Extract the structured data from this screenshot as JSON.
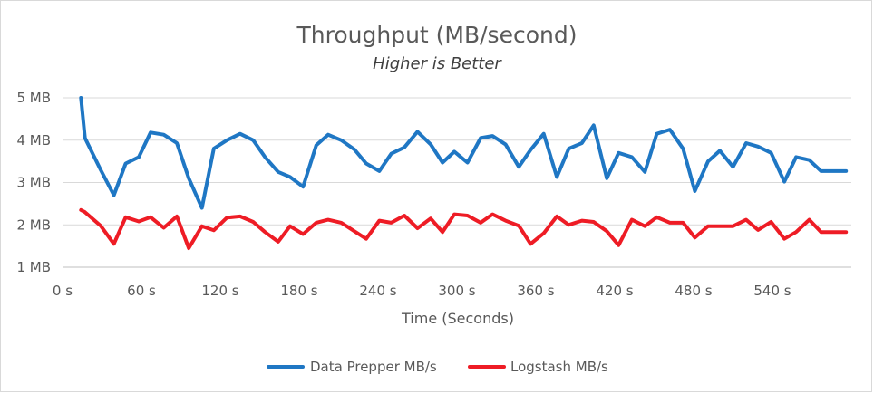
{
  "chart_data": {
    "type": "line",
    "title": "Throughput (MB/second)",
    "subtitle": "Higher is Better",
    "xlabel": "Time (Seconds)",
    "ylabel": "",
    "xlim": [
      0,
      600
    ],
    "ylim": [
      1,
      5
    ],
    "x_tick_labels": [
      "0 s",
      "60 s",
      "120 s",
      "180 s",
      "240 s",
      "300 s",
      "360 s",
      "420 s",
      "480 s",
      "540 s"
    ],
    "x_tick_values": [
      0,
      60,
      120,
      180,
      240,
      300,
      360,
      420,
      480,
      540
    ],
    "y_tick_labels": [
      "1 MB",
      "2 MB",
      "3 MB",
      "4 MB",
      "5 MB"
    ],
    "y_tick_values": [
      1,
      2,
      3,
      4,
      5
    ],
    "grid": true,
    "legend_position": "bottom",
    "x": [
      14,
      17,
      29,
      39,
      48,
      58,
      67,
      77,
      87,
      96,
      106,
      115,
      125,
      135,
      145,
      154,
      164,
      173,
      183,
      193,
      202,
      212,
      222,
      231,
      241,
      250,
      260,
      270,
      280,
      289,
      298,
      308,
      318,
      327,
      337,
      347,
      356,
      366,
      376,
      385,
      395,
      404,
      414,
      423,
      433,
      443,
      452,
      462,
      472,
      481,
      491,
      500,
      510,
      520,
      529,
      539,
      549,
      558,
      568,
      577,
      587,
      596
    ],
    "series": [
      {
        "name": "Data Prepper MB/s",
        "color": "#1f77c4",
        "values": [
          5.0,
          4.05,
          3.3,
          2.7,
          3.45,
          3.6,
          4.18,
          4.13,
          3.93,
          3.1,
          2.4,
          3.8,
          4.0,
          4.15,
          4.0,
          3.6,
          3.25,
          3.13,
          2.9,
          3.88,
          4.13,
          4.0,
          3.78,
          3.45,
          3.27,
          3.68,
          3.83,
          4.2,
          3.9,
          3.47,
          3.73,
          3.47,
          4.05,
          4.1,
          3.9,
          3.37,
          3.77,
          4.15,
          3.13,
          3.8,
          3.93,
          4.35,
          3.1,
          3.7,
          3.6,
          3.25,
          4.15,
          4.25,
          3.8,
          2.8,
          3.5,
          3.75,
          3.37,
          3.93,
          3.85,
          3.7,
          3.02,
          3.6,
          3.53,
          3.27,
          3.27,
          3.27
        ]
      },
      {
        "name": "Logstash MB/s",
        "color": "#ee1c25",
        "values": [
          2.35,
          2.3,
          1.98,
          1.55,
          2.18,
          2.08,
          2.18,
          1.93,
          2.2,
          1.45,
          1.97,
          1.87,
          2.17,
          2.2,
          2.07,
          1.83,
          1.6,
          1.97,
          1.78,
          2.05,
          2.12,
          2.05,
          1.85,
          1.67,
          2.1,
          2.05,
          2.22,
          1.92,
          2.15,
          1.83,
          2.25,
          2.22,
          2.05,
          2.25,
          2.1,
          1.98,
          1.55,
          1.8,
          2.2,
          2.0,
          2.1,
          2.07,
          1.85,
          1.52,
          2.12,
          1.97,
          2.18,
          2.05,
          2.05,
          1.7,
          1.97,
          1.97,
          1.97,
          2.12,
          1.88,
          2.07,
          1.67,
          1.83,
          2.12,
          1.83,
          1.83,
          1.83
        ]
      }
    ]
  }
}
